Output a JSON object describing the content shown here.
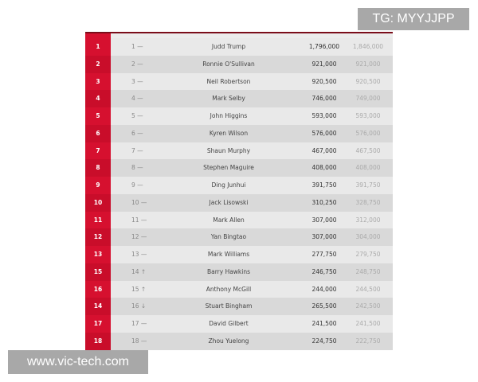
{
  "watermarks": {
    "top_right": "TG: MYYJJPP",
    "bottom_left": "www.vic-tech.com"
  },
  "colors": {
    "accent": "#d6102f",
    "top_border": "#7a0d1a"
  },
  "rows": [
    {
      "rank": "1",
      "prev": "1 —",
      "name": "Judd Trump",
      "points": "1,796,000",
      "provisional": "1,846,000"
    },
    {
      "rank": "2",
      "prev": "2 —",
      "name": "Ronnie O'Sullivan",
      "points": "921,000",
      "provisional": "921,000"
    },
    {
      "rank": "3",
      "prev": "3 —",
      "name": "Neil Robertson",
      "points": "920,500",
      "provisional": "920,500"
    },
    {
      "rank": "4",
      "prev": "4 —",
      "name": "Mark Selby",
      "points": "746,000",
      "provisional": "749,000"
    },
    {
      "rank": "5",
      "prev": "5 —",
      "name": "John Higgins",
      "points": "593,000",
      "provisional": "593,000"
    },
    {
      "rank": "6",
      "prev": "6 —",
      "name": "Kyren Wilson",
      "points": "576,000",
      "provisional": "576,000"
    },
    {
      "rank": "7",
      "prev": "7 —",
      "name": "Shaun Murphy",
      "points": "467,000",
      "provisional": "467,500"
    },
    {
      "rank": "8",
      "prev": "8 —",
      "name": "Stephen Maguire",
      "points": "408,000",
      "provisional": "408,000"
    },
    {
      "rank": "9",
      "prev": "9 —",
      "name": "Ding Junhui",
      "points": "391,750",
      "provisional": "391,750"
    },
    {
      "rank": "10",
      "prev": "10 —",
      "name": "Jack Lisowski",
      "points": "310,250",
      "provisional": "328,750"
    },
    {
      "rank": "11",
      "prev": "11 —",
      "name": "Mark Allen",
      "points": "307,000",
      "provisional": "312,000"
    },
    {
      "rank": "12",
      "prev": "12 —",
      "name": "Yan Bingtao",
      "points": "307,000",
      "provisional": "304,000"
    },
    {
      "rank": "13",
      "prev": "13 —",
      "name": "Mark Williams",
      "points": "277,750",
      "provisional": "279,750"
    },
    {
      "rank": "15",
      "prev": "14 ↑",
      "name": "Barry Hawkins",
      "points": "246,750",
      "provisional": "248,750"
    },
    {
      "rank": "16",
      "prev": "15 ↑",
      "name": "Anthony McGill",
      "points": "244,000",
      "provisional": "244,500"
    },
    {
      "rank": "14",
      "prev": "16 ↓",
      "name": "Stuart Bingham",
      "points": "265,500",
      "provisional": "242,500"
    },
    {
      "rank": "17",
      "prev": "17 —",
      "name": "David Gilbert",
      "points": "241,500",
      "provisional": "241,500"
    },
    {
      "rank": "18",
      "prev": "18 —",
      "name": "Zhou Yuelong",
      "points": "224,750",
      "provisional": "222,750"
    }
  ]
}
